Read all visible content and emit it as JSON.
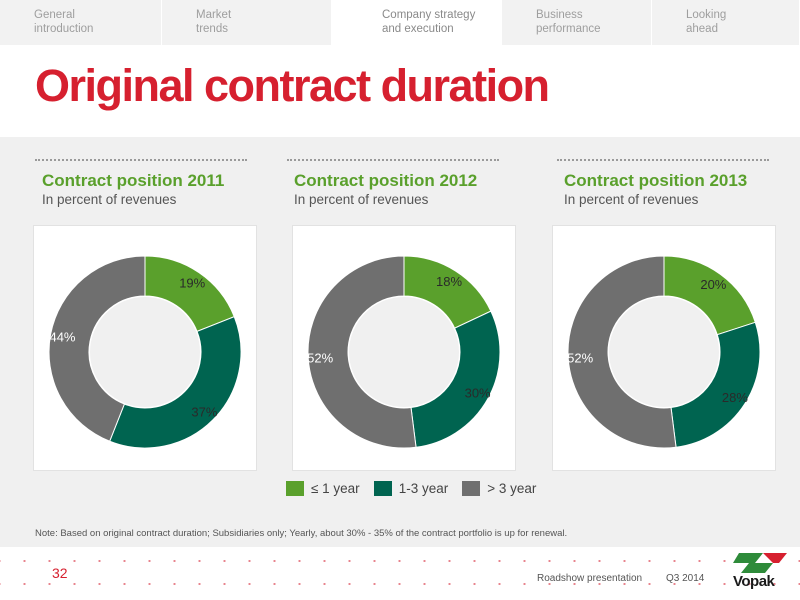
{
  "nav": {
    "tabs": [
      {
        "label_1": "General",
        "label_2": "introduction",
        "width": 162
      },
      {
        "label_1": "Market",
        "label_2": "trends",
        "width": 170
      },
      {
        "label_1": "Company strategy",
        "label_2": "and execution",
        "width": 170
      },
      {
        "label_1": "Business",
        "label_2": "performance",
        "width": 150
      },
      {
        "label_1": "Looking",
        "label_2": "ahead",
        "width": 148
      }
    ]
  },
  "title": "Original contract duration",
  "chart_data": [
    {
      "type": "pie",
      "title": "Contract position 2011",
      "subtitle": "In percent of revenues",
      "categories": [
        "≤ 1 year",
        "1-3 year",
        "> 3 year"
      ],
      "values": [
        19,
        37,
        44
      ],
      "labels": [
        "19%",
        "37%",
        "44%"
      ]
    },
    {
      "type": "pie",
      "title": "Contract position 2012",
      "subtitle": "In percent of revenues",
      "categories": [
        "≤ 1 year",
        "1-3 year",
        "> 3 year"
      ],
      "values": [
        18,
        30,
        52
      ],
      "labels": [
        "18%",
        "30%",
        "52%"
      ]
    },
    {
      "type": "pie",
      "title": "Contract position 2013",
      "subtitle": "In percent of revenues",
      "categories": [
        "≤ 1 year",
        "1-3 year",
        "> 3 year"
      ],
      "values": [
        20,
        28,
        52
      ],
      "labels": [
        "20%",
        "28%",
        "52%"
      ]
    }
  ],
  "colors": {
    "le1": "#5aa02c",
    "y13": "#006450",
    "gt3": "#6f6f6f"
  },
  "legend": [
    "≤ 1 year",
    "1-3 year",
    "> 3 year"
  ],
  "note": "Note: Based on original contract duration; Subsidiaries only; Yearly, about 30% - 35% of the contract portfolio is up for renewal.",
  "footer": {
    "page_number": "32",
    "label": "Roadshow presentation",
    "date": "Q3 2014",
    "logo_text": "Vopak"
  }
}
